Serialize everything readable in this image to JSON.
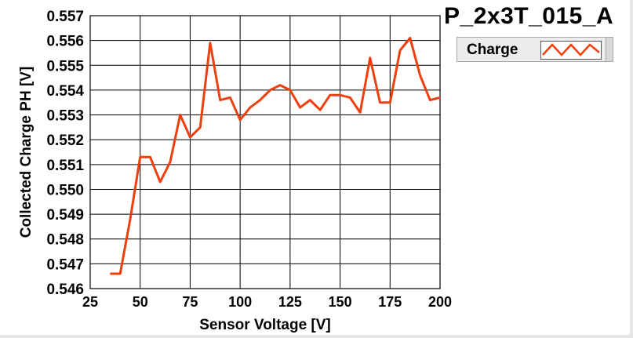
{
  "title": "P_2x3T_015_A",
  "legend": {
    "label": "Charge"
  },
  "colors": {
    "series": "#ee3f0f",
    "grid": "#000000",
    "background": "#ffffff"
  },
  "chart_data": {
    "type": "line",
    "title": "P_2x3T_015_A",
    "xlabel": "Sensor Voltage [V]",
    "ylabel": "Collected Charge PH [V]",
    "xlim": [
      25,
      200
    ],
    "ylim": [
      0.546,
      0.557
    ],
    "grid": true,
    "legend_position": "top-right",
    "x_ticks": [
      "25",
      "50",
      "75",
      "100",
      "125",
      "150",
      "175",
      "200"
    ],
    "y_ticks": [
      "0.546",
      "0.547",
      "0.548",
      "0.549",
      "0.550",
      "0.551",
      "0.552",
      "0.553",
      "0.554",
      "0.555",
      "0.556",
      "0.557"
    ],
    "series": [
      {
        "name": "Charge",
        "x": [
          35,
          40,
          45,
          50,
          55,
          60,
          65,
          70,
          75,
          80,
          85,
          90,
          95,
          100,
          105,
          110,
          115,
          120,
          125,
          130,
          135,
          140,
          145,
          150,
          155,
          160,
          165,
          170,
          175,
          180,
          185,
          190,
          195,
          200
        ],
        "y": [
          0.5466,
          0.5466,
          0.5488,
          0.5513,
          0.5513,
          0.5503,
          0.5511,
          0.553,
          0.5521,
          0.5525,
          0.5559,
          0.5536,
          0.5537,
          0.5528,
          0.5533,
          0.5536,
          0.554,
          0.5542,
          0.554,
          0.5533,
          0.5536,
          0.5532,
          0.5538,
          0.5538,
          0.5537,
          0.5531,
          0.5553,
          0.5535,
          0.5535,
          0.5556,
          0.5561,
          0.5546,
          0.5536,
          0.5537
        ]
      }
    ]
  }
}
